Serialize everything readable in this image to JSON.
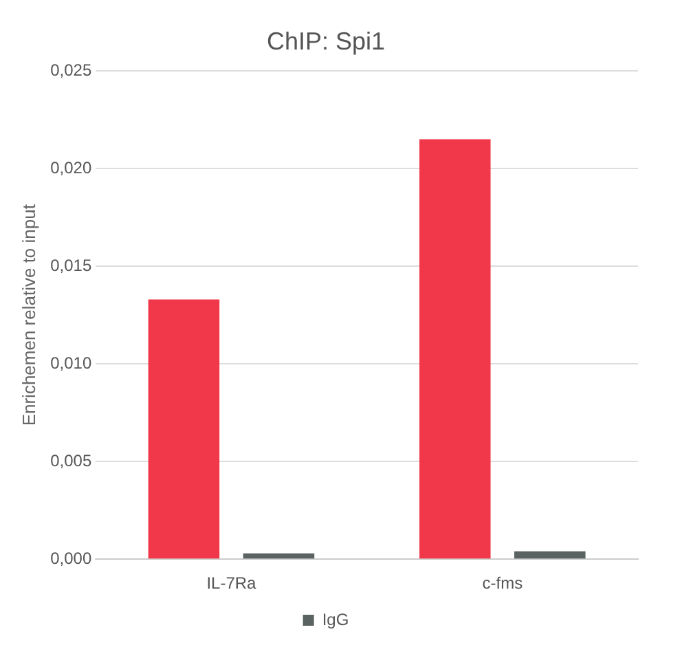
{
  "chart_data": {
    "type": "bar",
    "title": "ChIP: Spi1",
    "ylabel": "Enrichemen relative to input",
    "categories": [
      "IL-7Ra",
      "c-fms"
    ],
    "series": [
      {
        "color": "#f0384a",
        "values": [
          0.0133,
          0.0215
        ]
      },
      {
        "name": "IgG",
        "color": "#5a6262",
        "values": [
          0.0003,
          0.0004
        ]
      }
    ],
    "ylim": [
      0,
      0.025
    ],
    "yticks": [
      {
        "value": 0,
        "label": "0,000"
      },
      {
        "value": 0.005,
        "label": "0,005"
      },
      {
        "value": 0.01,
        "label": "0,010"
      },
      {
        "value": 0.015,
        "label": "0,015"
      },
      {
        "value": 0.02,
        "label": "0,020"
      },
      {
        "value": 0.025,
        "label": "0,025"
      }
    ],
    "grid": "y",
    "legend": "bottom"
  }
}
